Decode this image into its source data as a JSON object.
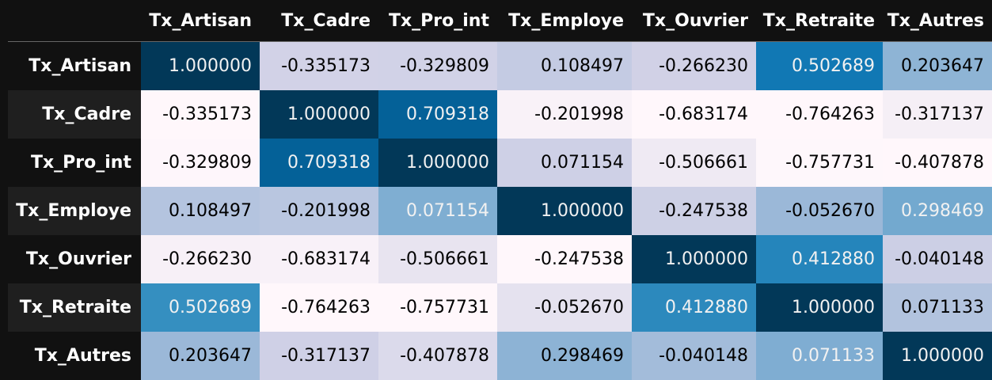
{
  "chart_data": {
    "type": "heatmap",
    "columns": [
      "Tx_Artisan",
      "Tx_Cadre",
      "Tx_Pro_int",
      "Tx_Employe",
      "Tx_Ouvrier",
      "Tx_Retraite",
      "Tx_Autres"
    ],
    "rows": [
      "Tx_Artisan",
      "Tx_Cadre",
      "Tx_Pro_int",
      "Tx_Employe",
      "Tx_Ouvrier",
      "Tx_Retraite",
      "Tx_Autres"
    ],
    "values": [
      [
        "1.000000",
        "-0.335173",
        "-0.329809",
        "0.108497",
        "-0.266230",
        "0.502689",
        "0.203647"
      ],
      [
        "-0.335173",
        "1.000000",
        "0.709318",
        "-0.201998",
        "-0.683174",
        "-0.764263",
        "-0.317137"
      ],
      [
        "-0.329809",
        "0.709318",
        "1.000000",
        "0.071154",
        "-0.506661",
        "-0.757731",
        "-0.407878"
      ],
      [
        "0.108497",
        "-0.201998",
        "0.071154",
        "1.000000",
        "-0.247538",
        "-0.052670",
        "0.298469"
      ],
      [
        "-0.266230",
        "-0.683174",
        "-0.506661",
        "-0.247538",
        "1.000000",
        "0.412880",
        "-0.040148"
      ],
      [
        "0.502689",
        "-0.764263",
        "-0.757731",
        "-0.052670",
        "0.412880",
        "1.000000",
        "0.071133"
      ],
      [
        "0.203647",
        "-0.317137",
        "-0.407878",
        "0.298469",
        "-0.040148",
        "0.071133",
        "1.000000"
      ]
    ],
    "colormap": "PuBu",
    "color_scale": "per-column"
  },
  "colors": {
    "background": "#111111",
    "header_text": "#ffffff",
    "cell_text_dark": "#000000",
    "cell_text_light": "#f1f1f1"
  }
}
